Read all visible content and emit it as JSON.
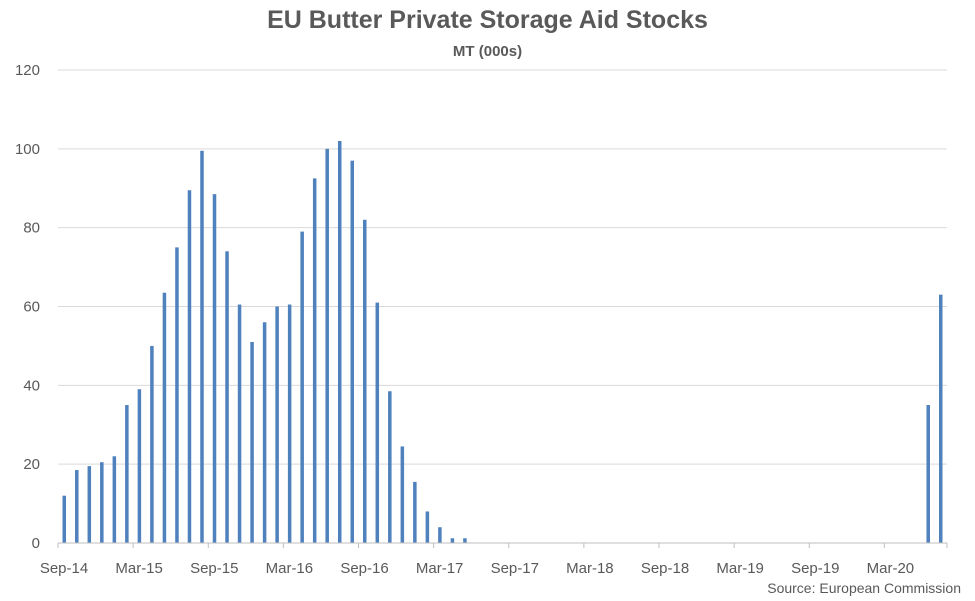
{
  "chart_data": {
    "type": "bar",
    "title": "EU Butter Private Storage Aid Stocks",
    "subtitle": "MT (000s)",
    "source": "Source: European Commission",
    "ylim": [
      0,
      120
    ],
    "y_ticks": [
      0,
      20,
      40,
      60,
      80,
      100,
      120
    ],
    "x_tick_labels": [
      "Sep-14",
      "Mar-15",
      "Sep-15",
      "Mar-16",
      "Sep-16",
      "Mar-17",
      "Sep-17",
      "Mar-18",
      "Sep-18",
      "Mar-19",
      "Sep-19",
      "Mar-20"
    ],
    "x_start": "Sep-14",
    "grid": true,
    "bar_color": "#4f81bd",
    "categories": [
      "Sep-14",
      "Oct-14",
      "Nov-14",
      "Dec-14",
      "Jan-15",
      "Feb-15",
      "Mar-15",
      "Apr-15",
      "May-15",
      "Jun-15",
      "Jul-15",
      "Aug-15",
      "Sep-15",
      "Oct-15",
      "Nov-15",
      "Dec-15",
      "Jan-16",
      "Feb-16",
      "Mar-16",
      "Apr-16",
      "May-16",
      "Jun-16",
      "Jul-16",
      "Aug-16",
      "Sep-16",
      "Oct-16",
      "Nov-16",
      "Dec-16",
      "Jan-17",
      "Feb-17",
      "Mar-17",
      "Apr-17",
      "May-17",
      "Jun-17",
      "Jul-17",
      "Aug-17",
      "Sep-17",
      "Oct-17",
      "Nov-17",
      "Dec-17",
      "Jan-18",
      "Feb-18",
      "Mar-18",
      "Apr-18",
      "May-18",
      "Jun-18",
      "Jul-18",
      "Aug-18",
      "Sep-18",
      "Oct-18",
      "Nov-18",
      "Dec-18",
      "Jan-19",
      "Feb-19",
      "Mar-19",
      "Apr-19",
      "May-19",
      "Jun-19",
      "Jul-19",
      "Aug-19",
      "Sep-19",
      "Oct-19",
      "Nov-19",
      "Dec-19",
      "Jan-20",
      "Feb-20",
      "Mar-20",
      "Apr-20",
      "May-20",
      "Jun-20",
      "Jul-20"
    ],
    "values": [
      12.0,
      18.5,
      19.5,
      20.5,
      22.0,
      35.0,
      39.0,
      50.0,
      63.5,
      75.0,
      89.5,
      99.5,
      88.5,
      74.0,
      60.5,
      51.0,
      56.0,
      60.0,
      60.5,
      79.0,
      92.5,
      100.0,
      102.0,
      97.0,
      82.0,
      61.0,
      38.5,
      24.5,
      15.5,
      8.0,
      4.0,
      1.2,
      1.2,
      0,
      0,
      0,
      0,
      0,
      0,
      0,
      0,
      0,
      0,
      0,
      0,
      0,
      0,
      0,
      0,
      0,
      0,
      0,
      0,
      0,
      0,
      0,
      0,
      0,
      0,
      0,
      0,
      0,
      0,
      0,
      0,
      0,
      0,
      0,
      0,
      35.0,
      63.0
    ]
  }
}
